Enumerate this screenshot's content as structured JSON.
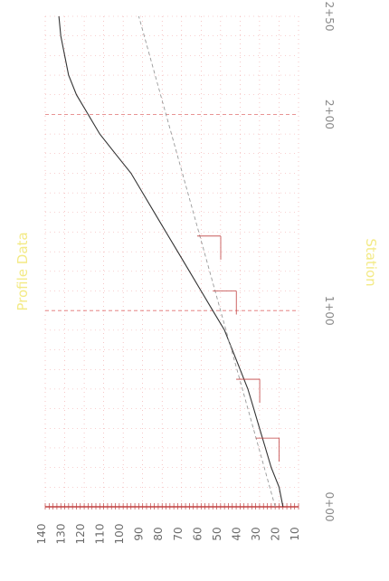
{
  "colors": {
    "background": "#ffffff",
    "grid_minor": "#f0a0a0",
    "grid_major": "#e07070",
    "profile_line": "#333333",
    "design_line": "#999999",
    "marker": "#c04040",
    "axis_text": "#6b6b6b",
    "faded_label": "#f3ea86"
  },
  "chart_data": {
    "type": "line",
    "orientation": "rotated-90",
    "left_label": "Profile Data",
    "right_label": "Station",
    "station_axis": {
      "ticks": [
        "0+00",
        "1+00",
        "2+00",
        "2+50"
      ],
      "range": [
        0,
        250
      ]
    },
    "elevation_axis": {
      "ticks": [
        "140",
        "130",
        "120",
        "110",
        "100",
        "90",
        "80",
        "70",
        "60",
        "50",
        "40",
        "30",
        "20",
        "10"
      ],
      "range": [
        10,
        140
      ]
    },
    "grid": true,
    "series": [
      {
        "x": [
          0,
          10,
          20,
          30,
          40,
          50,
          60,
          70,
          80,
          90,
          100,
          110,
          120,
          130,
          140,
          150,
          160,
          170,
          180,
          190,
          200,
          210,
          220,
          230,
          240,
          250
        ],
        "y": [
          18,
          20,
          24,
          27,
          30,
          33,
          36,
          40,
          44,
          48,
          54,
          60,
          66,
          72,
          78,
          84,
          90,
          96,
          104,
          112,
          118,
          124,
          128,
          130,
          132,
          133
        ]
      },
      {
        "x": [
          0,
          50,
          100,
          150,
          200,
          250
        ],
        "y": [
          22,
          36,
          50,
          64,
          78,
          92
        ]
      }
    ],
    "markers": [
      {
        "x": 35,
        "y": 32
      },
      {
        "x": 65,
        "y": 42
      },
      {
        "x": 110,
        "y": 54
      },
      {
        "x": 138,
        "y": 62
      }
    ]
  }
}
